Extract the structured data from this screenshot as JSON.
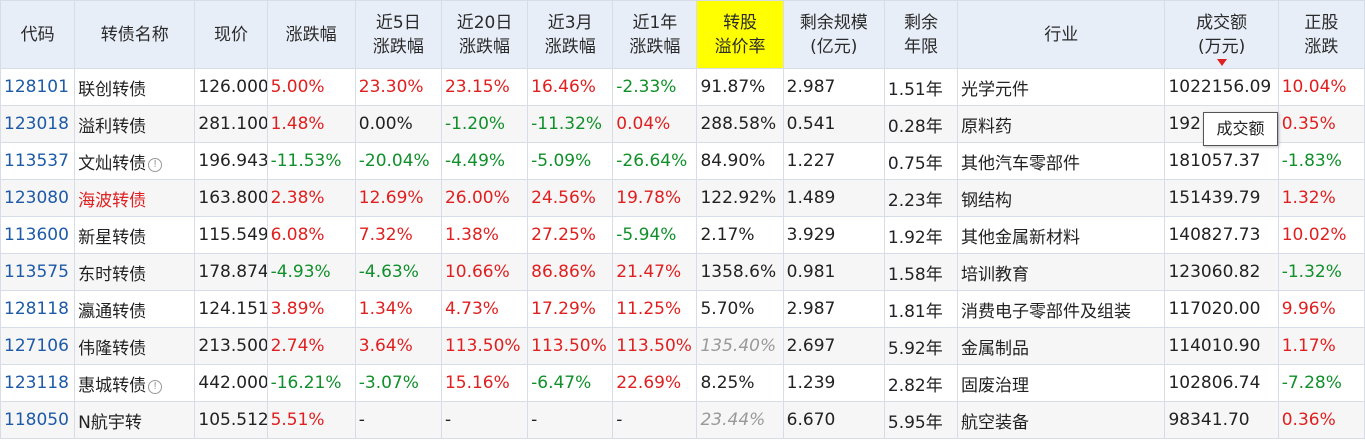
{
  "headers": [
    "代码",
    "转债名称",
    "现价",
    "涨跌幅",
    "近5日\n涨跌幅",
    "近20日\n涨跌幅",
    "近3月\n涨跌幅",
    "近1年\n涨跌幅",
    "转股\n溢价率",
    "剩余规模\n(亿元)",
    "剩余\n年限",
    "行业",
    "成交额\n(万元)",
    "正股\n涨跌"
  ],
  "tooltip": "成交额",
  "colors": {
    "up": "#e02020",
    "down": "#10902a",
    "code": "#1e5aa8",
    "highlight": "#ffff00",
    "header_bg": "#e8eef8"
  },
  "rows": [
    {
      "code": "128101",
      "name": "联创转债",
      "name_color": "default",
      "info": false,
      "price": "126.000",
      "chg": "5.00%",
      "d5": "23.30%",
      "d20": "23.15%",
      "m3": "16.46%",
      "y1": "-2.33%",
      "premium": "91.87%",
      "premium_style": "normal",
      "scale": "2.987",
      "years": "1.51年",
      "industry": "光学元件",
      "turnover": "1022156.09",
      "stock": "10.04%"
    },
    {
      "code": "123018",
      "name": "溢利转债",
      "name_color": "default",
      "info": false,
      "price": "281.100",
      "chg": "1.48%",
      "d5": "0.00%",
      "d20": "-1.20%",
      "m3": "-11.32%",
      "y1": "0.04%",
      "premium": "288.58%",
      "premium_style": "normal",
      "scale": "0.541",
      "years": "0.28年",
      "industry": "原料药",
      "turnover": "192",
      "stock": "0.35%"
    },
    {
      "code": "113537",
      "name": "文灿转债",
      "name_color": "default",
      "info": true,
      "price": "196.943",
      "chg": "-11.53%",
      "d5": "-20.04%",
      "d20": "-4.49%",
      "m3": "-5.09%",
      "y1": "-26.64%",
      "premium": "84.90%",
      "premium_style": "normal",
      "scale": "1.227",
      "years": "0.75年",
      "industry": "其他汽车零部件",
      "turnover": "181057.37",
      "stock": "-1.83%"
    },
    {
      "code": "123080",
      "name": "海波转债",
      "name_color": "red",
      "info": false,
      "price": "163.800",
      "chg": "2.38%",
      "d5": "12.69%",
      "d20": "26.00%",
      "m3": "24.56%",
      "y1": "19.78%",
      "premium": "122.92%",
      "premium_style": "normal",
      "scale": "1.489",
      "years": "2.23年",
      "industry": "钢结构",
      "turnover": "151439.79",
      "stock": "1.32%"
    },
    {
      "code": "113600",
      "name": "新星转债",
      "name_color": "default",
      "info": false,
      "price": "115.549",
      "chg": "6.08%",
      "d5": "7.32%",
      "d20": "1.38%",
      "m3": "27.25%",
      "y1": "-5.94%",
      "premium": "2.17%",
      "premium_style": "normal",
      "scale": "3.929",
      "years": "1.92年",
      "industry": "其他金属新材料",
      "turnover": "140827.73",
      "stock": "10.02%"
    },
    {
      "code": "113575",
      "name": "东时转债",
      "name_color": "default",
      "info": false,
      "price": "178.874",
      "chg": "-4.93%",
      "d5": "-4.63%",
      "d20": "10.66%",
      "m3": "86.86%",
      "y1": "21.47%",
      "premium": "1358.6%",
      "premium_style": "normal",
      "scale": "0.981",
      "years": "1.58年",
      "industry": "培训教育",
      "turnover": "123060.82",
      "stock": "-1.32%"
    },
    {
      "code": "128118",
      "name": "瀛通转债",
      "name_color": "default",
      "info": false,
      "price": "124.151",
      "chg": "3.89%",
      "d5": "1.34%",
      "d20": "4.73%",
      "m3": "17.29%",
      "y1": "11.25%",
      "premium": "5.70%",
      "premium_style": "normal",
      "scale": "2.987",
      "years": "1.81年",
      "industry": "消费电子零部件及组装",
      "turnover": "117020.00",
      "stock": "9.96%"
    },
    {
      "code": "127106",
      "name": "伟隆转债",
      "name_color": "default",
      "info": false,
      "price": "213.500",
      "chg": "2.74%",
      "d5": "3.64%",
      "d20": "113.50%",
      "m3": "113.50%",
      "y1": "113.50%",
      "premium": "135.40%",
      "premium_style": "italic",
      "scale": "2.697",
      "years": "5.92年",
      "industry": "金属制品",
      "turnover": "114010.90",
      "stock": "1.17%"
    },
    {
      "code": "123118",
      "name": "惠城转债",
      "name_color": "default",
      "info": true,
      "price": "442.000",
      "chg": "-16.21%",
      "d5": "-3.07%",
      "d20": "15.16%",
      "m3": "-6.47%",
      "y1": "22.69%",
      "premium": "8.25%",
      "premium_style": "normal",
      "scale": "1.239",
      "years": "2.82年",
      "industry": "固废治理",
      "turnover": "102806.74",
      "stock": "-7.28%"
    },
    {
      "code": "118050",
      "name": "N航宇转",
      "name_color": "default",
      "info": false,
      "price": "105.512",
      "chg": "5.51%",
      "d5": "-",
      "d20": "-",
      "m3": "-",
      "y1": "-",
      "premium": "23.44%",
      "premium_style": "italic",
      "scale": "6.670",
      "years": "5.95年",
      "industry": "航空装备",
      "turnover": "98341.70",
      "stock": "0.36%"
    }
  ]
}
